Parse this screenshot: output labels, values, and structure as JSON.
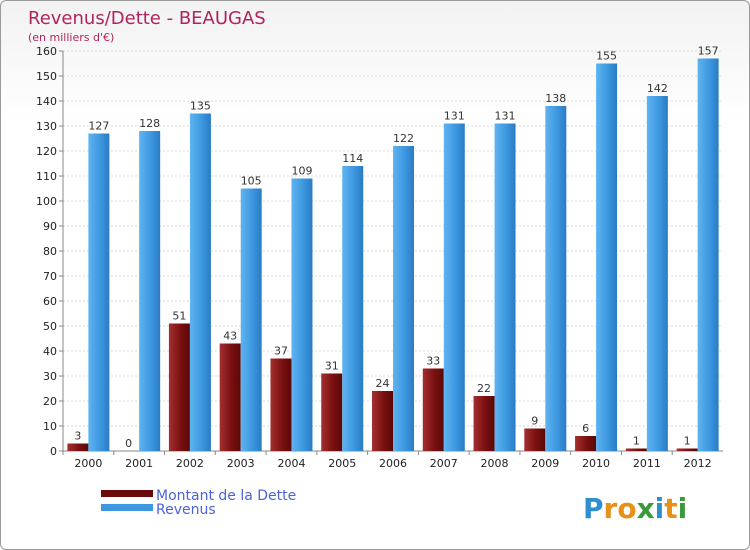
{
  "chart_data": {
    "type": "bar",
    "title": "Revenus/Dette - BEAUGAS",
    "subtitle": "(en milliers d'€)",
    "categories": [
      "2000",
      "2001",
      "2002",
      "2003",
      "2004",
      "2005",
      "2006",
      "2007",
      "2008",
      "2009",
      "2010",
      "2011",
      "2012"
    ],
    "series": [
      {
        "name": "Montant de la Dette",
        "color": "#7a1010",
        "values": [
          3,
          0,
          51,
          43,
          37,
          31,
          24,
          33,
          22,
          9,
          6,
          1,
          1
        ]
      },
      {
        "name": "Revenus",
        "color": "#3d98e0",
        "values": [
          127,
          128,
          135,
          105,
          109,
          114,
          122,
          131,
          131,
          138,
          155,
          142,
          157
        ]
      }
    ],
    "ylim": [
      0,
      160
    ],
    "yticks": [
      0,
      10,
      20,
      30,
      40,
      50,
      60,
      70,
      80,
      90,
      100,
      110,
      120,
      130,
      140,
      150,
      160
    ],
    "grid": true,
    "legend": "bottom-left"
  },
  "logo": {
    "letters": [
      {
        "ch": "P",
        "color": "#2e8fd0"
      },
      {
        "ch": "r",
        "color": "#e8901a"
      },
      {
        "ch": "o",
        "color": "#e8901a"
      },
      {
        "ch": "x",
        "color": "#3a9a3a"
      },
      {
        "ch": "i",
        "color": "#2e8fd0"
      },
      {
        "ch": "t",
        "color": "#e8901a"
      },
      {
        "ch": "i",
        "color": "#3a9a3a"
      }
    ]
  }
}
